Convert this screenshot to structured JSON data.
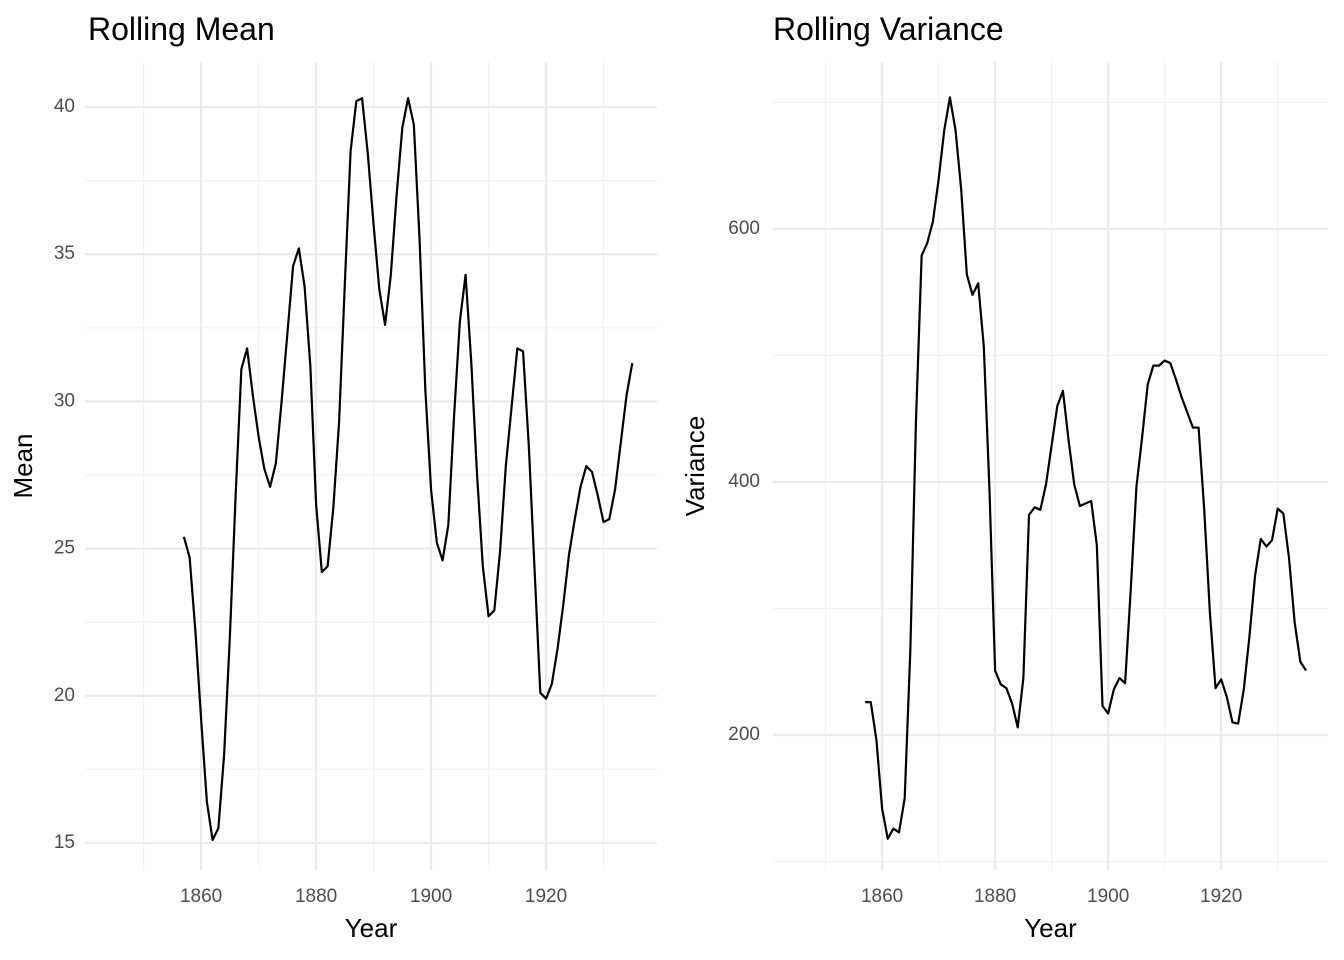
{
  "chart_data": [
    {
      "type": "line",
      "title": "Rolling Mean",
      "x_label": "Year",
      "y_label": "Mean",
      "color": "#000000",
      "grid": true,
      "xlim": [
        1839.8,
        1939.3
      ],
      "ylim": [
        14.08,
        41.53
      ],
      "xticks": [
        1860,
        1880,
        1900,
        1920
      ],
      "yticks": [
        15,
        20,
        25,
        30,
        35,
        40
      ],
      "x": [
        1857,
        1858,
        1859,
        1860,
        1861,
        1862,
        1863,
        1864,
        1865,
        1866,
        1867,
        1868,
        1869,
        1870,
        1871,
        1872,
        1873,
        1874,
        1875,
        1876,
        1877,
        1878,
        1879,
        1880,
        1881,
        1882,
        1883,
        1884,
        1885,
        1886,
        1887,
        1888,
        1889,
        1890,
        1891,
        1892,
        1893,
        1894,
        1895,
        1896,
        1897,
        1898,
        1899,
        1900,
        1901,
        1902,
        1903,
        1904,
        1905,
        1906,
        1907,
        1908,
        1909,
        1910,
        1911,
        1912,
        1913,
        1914,
        1915,
        1916,
        1917,
        1918,
        1919,
        1920,
        1921,
        1922,
        1923,
        1924,
        1925,
        1926,
        1927,
        1928,
        1929,
        1930,
        1931,
        1932,
        1933,
        1934,
        1935
      ],
      "values": [
        25.4,
        24.7,
        22.2,
        19.2,
        16.4,
        15.1,
        15.5,
        18.0,
        22.0,
        26.8,
        31.1,
        31.8,
        30.2,
        28.8,
        27.7,
        27.1,
        27.9,
        30.0,
        32.3,
        34.6,
        35.2,
        33.9,
        31.2,
        26.5,
        24.2,
        24.4,
        26.4,
        29.3,
        34.0,
        38.5,
        40.2,
        40.3,
        38.4,
        36.0,
        33.8,
        32.6,
        34.3,
        37.0,
        39.3,
        40.3,
        39.4,
        35.5,
        30.4,
        27.0,
        25.2,
        24.6,
        25.8,
        29.5,
        32.7,
        34.3,
        31.3,
        27.5,
        24.4,
        22.7,
        22.9,
        24.9,
        27.8,
        29.8,
        31.8,
        31.7,
        28.5,
        24.3,
        20.1,
        19.9,
        20.4,
        21.6,
        23.1,
        24.8,
        26.0,
        27.1,
        27.8,
        27.6,
        26.8,
        25.9,
        26.0,
        27.0,
        28.6,
        30.2,
        31.3
      ]
    },
    {
      "type": "line",
      "title": "Rolling Variance",
      "x_label": "Year",
      "y_label": "Variance",
      "color": "#000000",
      "grid": true,
      "xlim": [
        1840.7,
        1938.9
      ],
      "ylim": [
        93.3,
        732
      ],
      "xticks": [
        1860,
        1880,
        1900,
        1920
      ],
      "yticks": [
        200,
        400,
        600
      ],
      "x": [
        1857,
        1858,
        1859,
        1860,
        1861,
        1862,
        1863,
        1864,
        1865,
        1866,
        1867,
        1868,
        1869,
        1870,
        1871,
        1872,
        1873,
        1874,
        1875,
        1876,
        1877,
        1878,
        1879,
        1880,
        1881,
        1882,
        1883,
        1884,
        1885,
        1886,
        1887,
        1888,
        1889,
        1890,
        1891,
        1892,
        1893,
        1894,
        1895,
        1896,
        1897,
        1898,
        1899,
        1900,
        1901,
        1902,
        1903,
        1904,
        1905,
        1906,
        1907,
        1908,
        1909,
        1910,
        1911,
        1912,
        1913,
        1914,
        1915,
        1916,
        1917,
        1918,
        1919,
        1920,
        1921,
        1922,
        1923,
        1924,
        1925,
        1926,
        1927,
        1928,
        1929,
        1930,
        1931,
        1932,
        1933,
        1934,
        1935
      ],
      "values": [
        226,
        226,
        196,
        142,
        118,
        126,
        123,
        150,
        267,
        449,
        579,
        589,
        606,
        639,
        678,
        704,
        678,
        631,
        564,
        548,
        557,
        507,
        394,
        251,
        240,
        237,
        225,
        206,
        245,
        374,
        380,
        378,
        398,
        429,
        460,
        472,
        433,
        398,
        381,
        383,
        385,
        350,
        223,
        217,
        236,
        245,
        241,
        315,
        396,
        435,
        477,
        492,
        492,
        496,
        494,
        481,
        467,
        455,
        443,
        443,
        378,
        297,
        237,
        244,
        230,
        210,
        209,
        236,
        278,
        326,
        355,
        349,
        354,
        379,
        375,
        340,
        289,
        258,
        251
      ]
    }
  ]
}
